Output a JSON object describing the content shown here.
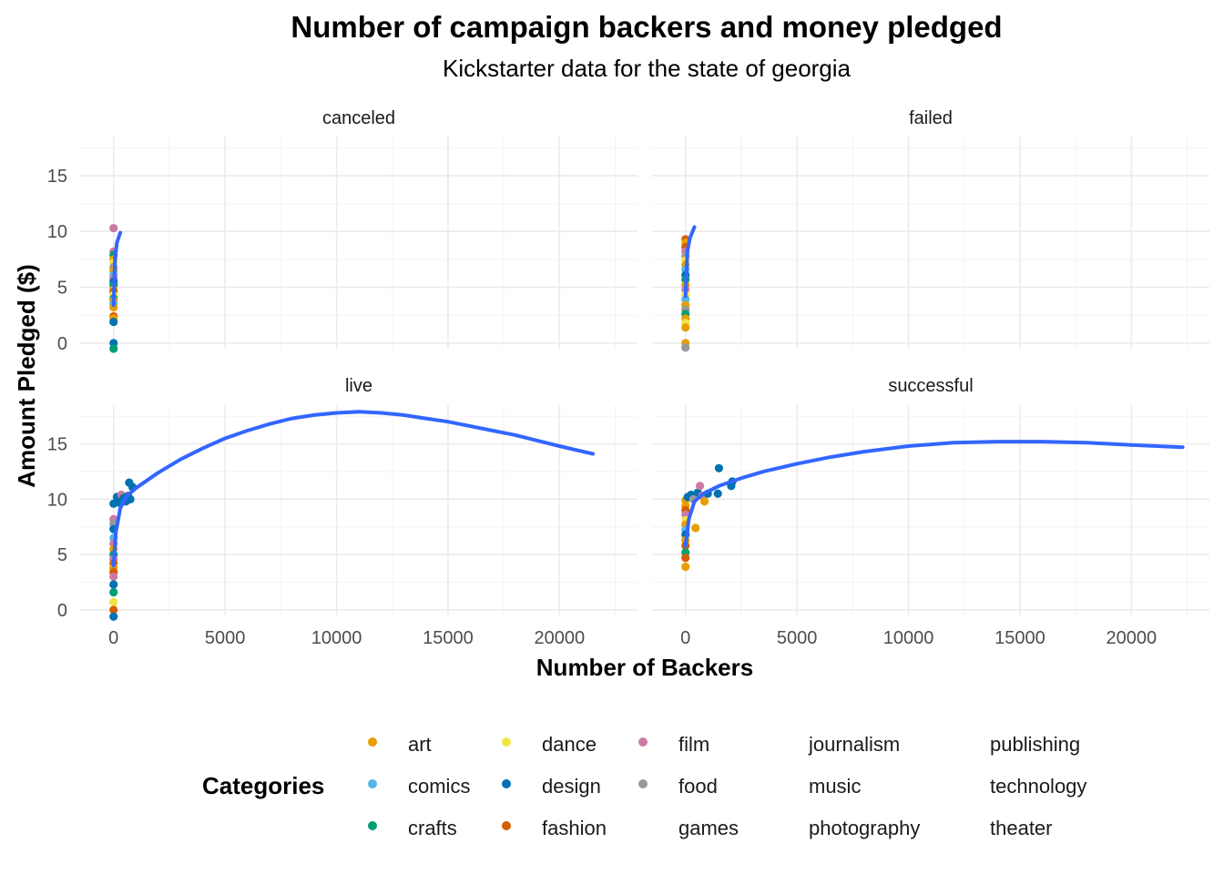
{
  "chart_data": {
    "type": "scatter",
    "title": "Number of campaign backers and money pledged",
    "subtitle": "Kickstarter data for the state of georgia",
    "xlabel": "Number of Backers",
    "ylabel": "Amount Pledged ($)",
    "xlim": [
      -1500,
      23500
    ],
    "ylim": [
      -0.5,
      18.5
    ],
    "x_ticks": [
      0,
      5000,
      10000,
      15000,
      20000
    ],
    "x_tick_labels": [
      "0",
      "5000",
      "10000",
      "15000",
      "20000"
    ],
    "y_ticks": [
      0,
      5,
      10,
      15
    ],
    "y_tick_labels": [
      "0",
      "5",
      "10",
      "15"
    ],
    "grid": true,
    "legend": {
      "title": "Categories",
      "position": "bottom",
      "columns": [
        [
          "art",
          "comics",
          "crafts"
        ],
        [
          "dance",
          "design",
          "fashion"
        ],
        [
          "film",
          "food",
          "games"
        ],
        [
          "journalism",
          "music",
          "photography"
        ],
        [
          "publishing",
          "technology",
          "theater"
        ]
      ],
      "colors": {
        "art": "#E69F00",
        "comics": "#56B4E9",
        "crafts": "#009E73",
        "dance": "#F0E442",
        "design": "#0072B2",
        "fashion": "#D55E00",
        "film": "#CC79A7",
        "food": "#999999"
      }
    },
    "trend_color": "#3366FF",
    "panels": [
      {
        "name": "canceled",
        "points": [
          {
            "x": 0,
            "y": 10.3,
            "c": "film"
          },
          {
            "x": 0,
            "y": 8.2,
            "c": "film"
          },
          {
            "x": 0,
            "y": 7.9,
            "c": "crafts"
          },
          {
            "x": 0,
            "y": 7.5,
            "c": "art"
          },
          {
            "x": 0,
            "y": 7.2,
            "c": "dance"
          },
          {
            "x": 0,
            "y": 6.8,
            "c": "food"
          },
          {
            "x": 0,
            "y": 6.5,
            "c": "art"
          },
          {
            "x": 0,
            "y": 6.1,
            "c": "comics"
          },
          {
            "x": 0,
            "y": 5.8,
            "c": "film"
          },
          {
            "x": 0,
            "y": 5.5,
            "c": "design"
          },
          {
            "x": 0,
            "y": 5.2,
            "c": "crafts"
          },
          {
            "x": 0,
            "y": 4.8,
            "c": "art"
          },
          {
            "x": 0,
            "y": 4.6,
            "c": "fashion"
          },
          {
            "x": 0,
            "y": 4.3,
            "c": "dance"
          },
          {
            "x": 0,
            "y": 4.0,
            "c": "crafts"
          },
          {
            "x": 0,
            "y": 3.8,
            "c": "art"
          },
          {
            "x": 0,
            "y": 3.5,
            "c": "comics"
          },
          {
            "x": 0,
            "y": 3.2,
            "c": "art"
          },
          {
            "x": 0,
            "y": 2.4,
            "c": "fashion"
          },
          {
            "x": 0,
            "y": 2.2,
            "c": "art"
          },
          {
            "x": 0,
            "y": 1.9,
            "c": "design"
          },
          {
            "x": 0,
            "y": 0.0,
            "c": "design"
          },
          {
            "x": 0,
            "y": -0.5,
            "c": "crafts"
          }
        ],
        "trend": [
          [
            0,
            3.4
          ],
          [
            60,
            7.5
          ],
          [
            150,
            9.0
          ],
          [
            300,
            9.9
          ]
        ]
      },
      {
        "name": "failed",
        "points": [
          {
            "x": 0,
            "y": 9.3,
            "c": "fashion"
          },
          {
            "x": 0,
            "y": 9.0,
            "c": "art"
          },
          {
            "x": 0,
            "y": 8.6,
            "c": "fashion"
          },
          {
            "x": 0,
            "y": 8.2,
            "c": "film"
          },
          {
            "x": 0,
            "y": 7.8,
            "c": "food"
          },
          {
            "x": 0,
            "y": 7.4,
            "c": "dance"
          },
          {
            "x": 0,
            "y": 7.0,
            "c": "art"
          },
          {
            "x": 0,
            "y": 6.6,
            "c": "comics"
          },
          {
            "x": 0,
            "y": 6.1,
            "c": "design"
          },
          {
            "x": 0,
            "y": 5.7,
            "c": "crafts"
          },
          {
            "x": 0,
            "y": 5.2,
            "c": "art"
          },
          {
            "x": 0,
            "y": 4.8,
            "c": "film"
          },
          {
            "x": 0,
            "y": 4.3,
            "c": "dance"
          },
          {
            "x": 0,
            "y": 3.9,
            "c": "comics"
          },
          {
            "x": 0,
            "y": 3.4,
            "c": "art"
          },
          {
            "x": 0,
            "y": 3.0,
            "c": "food"
          },
          {
            "x": 0,
            "y": 2.6,
            "c": "crafts"
          },
          {
            "x": 0,
            "y": 2.2,
            "c": "art"
          },
          {
            "x": 0,
            "y": 1.8,
            "c": "dance"
          },
          {
            "x": 0,
            "y": 1.4,
            "c": "art"
          },
          {
            "x": 0,
            "y": 0.0,
            "c": "art"
          },
          {
            "x": 0,
            "y": -0.4,
            "c": "food"
          }
        ],
        "trend": [
          [
            0,
            4.2
          ],
          [
            80,
            8.2
          ],
          [
            200,
            9.4
          ],
          [
            400,
            10.4
          ]
        ]
      },
      {
        "name": "live",
        "points": [
          {
            "x": 0,
            "y": 9.6,
            "c": "design"
          },
          {
            "x": 0,
            "y": 8.2,
            "c": "film"
          },
          {
            "x": 0,
            "y": 7.8,
            "c": "food"
          },
          {
            "x": 0,
            "y": 7.3,
            "c": "design"
          },
          {
            "x": 0,
            "y": 6.5,
            "c": "comics"
          },
          {
            "x": 0,
            "y": 6.0,
            "c": "film"
          },
          {
            "x": 0,
            "y": 5.5,
            "c": "art"
          },
          {
            "x": 0,
            "y": 5.0,
            "c": "crafts"
          },
          {
            "x": 0,
            "y": 4.6,
            "c": "film"
          },
          {
            "x": 0,
            "y": 4.2,
            "c": "fashion"
          },
          {
            "x": 0,
            "y": 3.8,
            "c": "art"
          },
          {
            "x": 0,
            "y": 3.4,
            "c": "fashion"
          },
          {
            "x": 0,
            "y": 3.0,
            "c": "film"
          },
          {
            "x": 0,
            "y": 2.3,
            "c": "design"
          },
          {
            "x": 0,
            "y": 1.6,
            "c": "crafts"
          },
          {
            "x": 0,
            "y": 0.7,
            "c": "dance"
          },
          {
            "x": 0,
            "y": 0.0,
            "c": "fashion"
          },
          {
            "x": 0,
            "y": -0.6,
            "c": "design"
          },
          {
            "x": 150,
            "y": 10.2,
            "c": "design"
          },
          {
            "x": 250,
            "y": 9.7,
            "c": "design"
          },
          {
            "x": 350,
            "y": 10.4,
            "c": "film"
          },
          {
            "x": 450,
            "y": 10.1,
            "c": "design"
          },
          {
            "x": 550,
            "y": 9.8,
            "c": "design"
          },
          {
            "x": 650,
            "y": 10.3,
            "c": "design"
          },
          {
            "x": 700,
            "y": 11.5,
            "c": "design"
          },
          {
            "x": 750,
            "y": 10.0,
            "c": "design"
          },
          {
            "x": 850,
            "y": 11.1,
            "c": "design"
          }
        ],
        "trend": [
          [
            0,
            4.0
          ],
          [
            100,
            7.0
          ],
          [
            300,
            9.2
          ],
          [
            600,
            10.3
          ],
          [
            1000,
            11.0
          ],
          [
            2000,
            12.4
          ],
          [
            3000,
            13.6
          ],
          [
            4000,
            14.6
          ],
          [
            5000,
            15.5
          ],
          [
            6000,
            16.2
          ],
          [
            7000,
            16.8
          ],
          [
            8000,
            17.3
          ],
          [
            9000,
            17.6
          ],
          [
            10000,
            17.8
          ],
          [
            11000,
            17.9
          ],
          [
            12000,
            17.8
          ],
          [
            13000,
            17.6
          ],
          [
            14000,
            17.3
          ],
          [
            15000,
            17.0
          ],
          [
            16000,
            16.6
          ],
          [
            17000,
            16.2
          ],
          [
            18000,
            15.8
          ],
          [
            19000,
            15.3
          ],
          [
            20000,
            14.8
          ],
          [
            21500,
            14.1
          ]
        ]
      },
      {
        "name": "successful",
        "points": [
          {
            "x": 0,
            "y": 9.9,
            "c": "art"
          },
          {
            "x": 0,
            "y": 9.4,
            "c": "art"
          },
          {
            "x": 0,
            "y": 9.0,
            "c": "fashion"
          },
          {
            "x": 0,
            "y": 8.6,
            "c": "film"
          },
          {
            "x": 0,
            "y": 8.1,
            "c": "dance"
          },
          {
            "x": 0,
            "y": 7.7,
            "c": "art"
          },
          {
            "x": 0,
            "y": 7.2,
            "c": "comics"
          },
          {
            "x": 0,
            "y": 6.8,
            "c": "design"
          },
          {
            "x": 0,
            "y": 6.3,
            "c": "art"
          },
          {
            "x": 0,
            "y": 5.8,
            "c": "fashion"
          },
          {
            "x": 0,
            "y": 5.2,
            "c": "crafts"
          },
          {
            "x": 0,
            "y": 4.7,
            "c": "fashion"
          },
          {
            "x": 0,
            "y": 3.9,
            "c": "art"
          },
          {
            "x": 100,
            "y": 10.2,
            "c": "design"
          },
          {
            "x": 250,
            "y": 10.4,
            "c": "design"
          },
          {
            "x": 350,
            "y": 10.0,
            "c": "food"
          },
          {
            "x": 450,
            "y": 7.4,
            "c": "art"
          },
          {
            "x": 550,
            "y": 10.6,
            "c": "design"
          },
          {
            "x": 650,
            "y": 11.2,
            "c": "film"
          },
          {
            "x": 750,
            "y": 10.3,
            "c": "film"
          },
          {
            "x": 850,
            "y": 9.8,
            "c": "art"
          },
          {
            "x": 1000,
            "y": 10.5,
            "c": "design"
          },
          {
            "x": 1500,
            "y": 12.8,
            "c": "design"
          },
          {
            "x": 1450,
            "y": 10.5,
            "c": "design"
          },
          {
            "x": 2100,
            "y": 11.6,
            "c": "design"
          },
          {
            "x": 2050,
            "y": 11.2,
            "c": "design"
          }
        ],
        "trend": [
          [
            0,
            5.8
          ],
          [
            150,
            8.2
          ],
          [
            400,
            9.8
          ],
          [
            800,
            10.5
          ],
          [
            1500,
            11.2
          ],
          [
            2500,
            11.9
          ],
          [
            3500,
            12.5
          ],
          [
            5000,
            13.2
          ],
          [
            6500,
            13.8
          ],
          [
            8000,
            14.3
          ],
          [
            10000,
            14.8
          ],
          [
            12000,
            15.1
          ],
          [
            14000,
            15.2
          ],
          [
            16000,
            15.2
          ],
          [
            18000,
            15.1
          ],
          [
            20000,
            14.9
          ],
          [
            22300,
            14.7
          ]
        ]
      }
    ]
  }
}
